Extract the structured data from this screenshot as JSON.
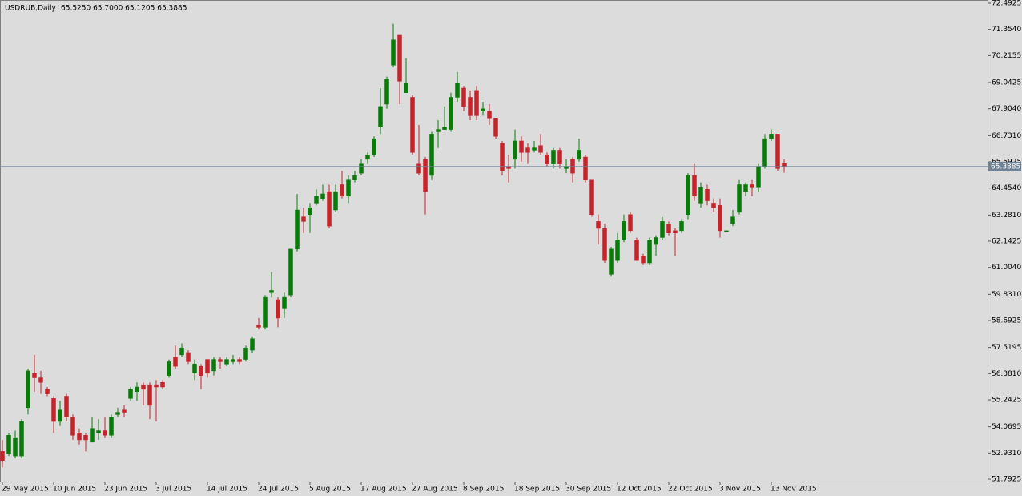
{
  "chart_data": {
    "type": "candlestick",
    "title": "USDRUB,Daily",
    "ohlc_label": "65.5250 65.7000 65.1205 65.3885",
    "up_color": "#0a7a0a",
    "down_color": "#c4242b",
    "price_line_color": "#6e8294",
    "last_price": 65.3885,
    "categories": [
      "29 May 2015",
      null,
      null,
      null,
      null,
      null,
      null,
      null,
      "10 Jun 2015",
      null,
      null,
      null,
      null,
      null,
      null,
      null,
      "23 Jun 2015",
      null,
      null,
      null,
      null,
      null,
      null,
      null,
      "3 Jul 2015",
      null,
      null,
      null,
      null,
      null,
      null,
      null,
      "14 Jul 2015",
      null,
      null,
      null,
      null,
      null,
      null,
      null,
      "24 Jul 2015",
      null,
      null,
      null,
      null,
      null,
      null,
      null,
      "5 Aug 2015",
      null,
      null,
      null,
      null,
      null,
      null,
      null,
      "17 Aug 2015",
      null,
      null,
      null,
      null,
      null,
      null,
      null,
      "27 Aug 2015",
      null,
      null,
      null,
      null,
      null,
      null,
      null,
      "8 Sep 2015",
      null,
      null,
      null,
      null,
      null,
      null,
      null,
      "18 Sep 2015",
      null,
      null,
      null,
      null,
      null,
      null,
      null,
      "30 Sep 2015",
      null,
      null,
      null,
      null,
      null,
      null,
      null,
      "12 Oct 2015",
      null,
      null,
      null,
      null,
      null,
      null,
      null,
      "22 Oct 2015",
      null,
      null,
      null,
      null,
      null,
      null,
      null,
      "3 Nov 2015",
      null,
      null,
      null,
      null,
      null,
      null,
      null,
      "13 Nov 2015",
      null,
      null
    ],
    "open": [
      53.0,
      52.9,
      52.8,
      52.8,
      54.9,
      56.4,
      56.2,
      55.7,
      55.3,
      54.3,
      55.4,
      54.5,
      53.8,
      53.7,
      53.4,
      53.8,
      53.9,
      53.7,
      54.6,
      54.8,
      55.3,
      55.6,
      55.9,
      55.9,
      55.9,
      56.0,
      56.3,
      57.1,
      57.2,
      57.3,
      56.4,
      56.7,
      57.0,
      56.5,
      57.0,
      56.8,
      56.9,
      57.0,
      57.0,
      57.4,
      58.5,
      58.4,
      59.9,
      59.6,
      59.2,
      59.8,
      61.8,
      63.2,
      63.3,
      63.8,
      64.0,
      64.3,
      63.5,
      64.6,
      64.1,
      64.8,
      65.1,
      65.7,
      65.9,
      67.1,
      68.1,
      69.8,
      71.1,
      68.6,
      68.4,
      65.5,
      65.7,
      65.0,
      66.9,
      67.0,
      67.0,
      68.4,
      68.8,
      68.4,
      68.7,
      67.8,
      67.8,
      67.5,
      66.4,
      65.4,
      65.7,
      66.5,
      66.2,
      66.1,
      66.3,
      65.9,
      65.5,
      66.1,
      65.3,
      65.7,
      65.7,
      65.8,
      64.8,
      63.0,
      62.7,
      60.7,
      61.3,
      62.2,
      63.3,
      62.2,
      61.5,
      61.2,
      62.0,
      62.3,
      62.9,
      62.6,
      62.6,
      63.3,
      65.0,
      63.8,
      64.4,
      63.8,
      63.7,
      62.6,
      62.9,
      63.4,
      64.3,
      64.6,
      64.5,
      65.4,
      66.6,
      66.8,
      65.525
    ],
    "high": [
      53.5,
      53.8,
      53.9,
      54.4,
      56.6,
      57.2,
      56.5,
      55.8,
      55.4,
      55.2,
      55.5,
      54.6,
      54.0,
      53.8,
      54.5,
      54.4,
      54.5,
      54.6,
      54.9,
      55.0,
      55.8,
      56.0,
      56.0,
      56.0,
      56.1,
      56.1,
      57.0,
      57.6,
      57.7,
      57.4,
      57.0,
      56.8,
      57.0,
      57.1,
      57.1,
      57.1,
      57.2,
      57.1,
      57.6,
      58.0,
      58.8,
      59.8,
      60.8,
      59.7,
      59.9,
      61.8,
      64.2,
      63.6,
      63.8,
      64.4,
      64.6,
      64.6,
      64.6,
      65.2,
      65.0,
      65.2,
      65.7,
      66.0,
      66.7,
      68.8,
      69.3,
      71.6,
      71.1,
      70.1,
      68.5,
      67.2,
      65.8,
      66.9,
      67.4,
      68.0,
      68.6,
      69.5,
      68.9,
      68.7,
      68.9,
      68.2,
      68.1,
      67.5,
      66.5,
      65.9,
      67.0,
      66.7,
      66.4,
      66.5,
      66.8,
      66.0,
      66.2,
      66.2,
      65.7,
      65.8,
      66.6,
      65.9,
      64.8,
      63.3,
      62.9,
      61.9,
      62.5,
      63.3,
      63.4,
      62.3,
      61.6,
      62.3,
      62.4,
      63.2,
      63.0,
      62.7,
      63.1,
      65.1,
      65.5,
      64.7,
      64.6,
      64.0,
      64.0,
      62.6,
      63.5,
      64.8,
      64.7,
      64.8,
      65.5,
      66.8,
      67.0,
      66.8,
      65.7
    ],
    "low": [
      52.3,
      52.8,
      52.7,
      52.7,
      54.6,
      55.6,
      55.5,
      55.4,
      53.8,
      54.1,
      54.3,
      53.5,
      53.3,
      53.0,
      53.4,
      53.5,
      53.6,
      53.6,
      54.5,
      54.5,
      55.2,
      55.2,
      55.0,
      54.4,
      54.3,
      55.7,
      56.2,
      56.6,
      57.1,
      56.8,
      56.1,
      55.7,
      56.2,
      56.3,
      56.6,
      56.7,
      56.8,
      56.8,
      56.9,
      57.3,
      58.3,
      58.3,
      59.7,
      58.4,
      58.8,
      59.7,
      61.7,
      62.5,
      62.5,
      63.7,
      63.9,
      62.7,
      63.4,
      64.0,
      63.8,
      64.7,
      65.0,
      65.5,
      65.8,
      66.8,
      67.9,
      69.7,
      68.1,
      68.6,
      65.9,
      65.0,
      63.3,
      64.8,
      66.2,
      67.0,
      66.9,
      68.2,
      67.8,
      67.4,
      67.4,
      67.6,
      67.2,
      66.6,
      65.0,
      64.7,
      65.3,
      65.6,
      65.5,
      66.0,
      65.9,
      65.4,
      65.3,
      65.3,
      65.1,
      64.7,
      65.6,
      64.7,
      63.2,
      62.0,
      61.2,
      60.6,
      61.2,
      62.1,
      62.5,
      61.3,
      61.1,
      61.1,
      61.5,
      62.2,
      62.4,
      61.5,
      62.5,
      63.1,
      63.9,
      63.6,
      63.7,
      63.4,
      62.3,
      62.55,
      62.8,
      63.3,
      64.1,
      64.1,
      64.3,
      65.3,
      66.5,
      65.2,
      65.1205
    ],
    "close": [
      52.6,
      53.7,
      53.6,
      54.3,
      56.5,
      56.2,
      56.0,
      55.5,
      54.3,
      54.8,
      54.5,
      53.7,
      53.5,
      53.5,
      54.0,
      53.9,
      53.7,
      54.5,
      54.7,
      54.7,
      55.7,
      55.8,
      55.7,
      55.0,
      55.8,
      55.8,
      56.9,
      56.7,
      57.5,
      56.9,
      56.8,
      56.3,
      56.4,
      57.0,
      56.9,
      57.0,
      57.0,
      56.9,
      57.5,
      57.9,
      58.4,
      59.7,
      60.0,
      58.8,
      59.7,
      61.8,
      63.5,
      63.0,
      63.6,
      64.1,
      64.2,
      62.8,
      64.3,
      64.1,
      64.8,
      65.0,
      65.5,
      65.9,
      66.6,
      68.0,
      69.2,
      70.9,
      69.1,
      69.0,
      66.0,
      65.1,
      64.3,
      66.8,
      67.0,
      67.1,
      68.4,
      69.0,
      68.0,
      67.6,
      67.6,
      67.9,
      67.5,
      66.7,
      65.2,
      65.3,
      66.5,
      66.0,
      66.0,
      66.2,
      66.0,
      65.5,
      66.1,
      65.5,
      65.4,
      65.1,
      66.1,
      64.8,
      63.3,
      62.7,
      61.3,
      61.8,
      62.2,
      63.0,
      62.6,
      61.3,
      61.2,
      62.2,
      62.3,
      63.0,
      62.5,
      62.5,
      63.0,
      65.0,
      64.1,
      64.5,
      63.9,
      63.6,
      62.6,
      62.6,
      63.2,
      64.6,
      64.6,
      64.5,
      65.4,
      66.6,
      66.8,
      65.3,
      65.3885
    ],
    "ylim": [
      51.7925,
      72.4925
    ],
    "yticks": [
      72.4925,
      {
        "value": 71.354,
        "label": "71.3540"
      },
      70.2155,
      69.0425,
      {
        "value": 67.904,
        "label": "67.9040"
      },
      {
        "value": 66.731,
        "label": "66.7310"
      },
      65.5925,
      {
        "value": 64.454,
        "label": "64.4540"
      },
      {
        "value": 63.281,
        "label": "63.2810"
      },
      62.1425,
      {
        "value": 61.004,
        "label": "61.0040"
      },
      {
        "value": 59.831,
        "label": "59.8310"
      },
      58.6925,
      57.5195,
      {
        "value": 56.381,
        "label": "56.3810"
      },
      55.2425,
      54.0695,
      {
        "value": 52.931,
        "label": "52.9310"
      },
      51.7925
    ]
  }
}
